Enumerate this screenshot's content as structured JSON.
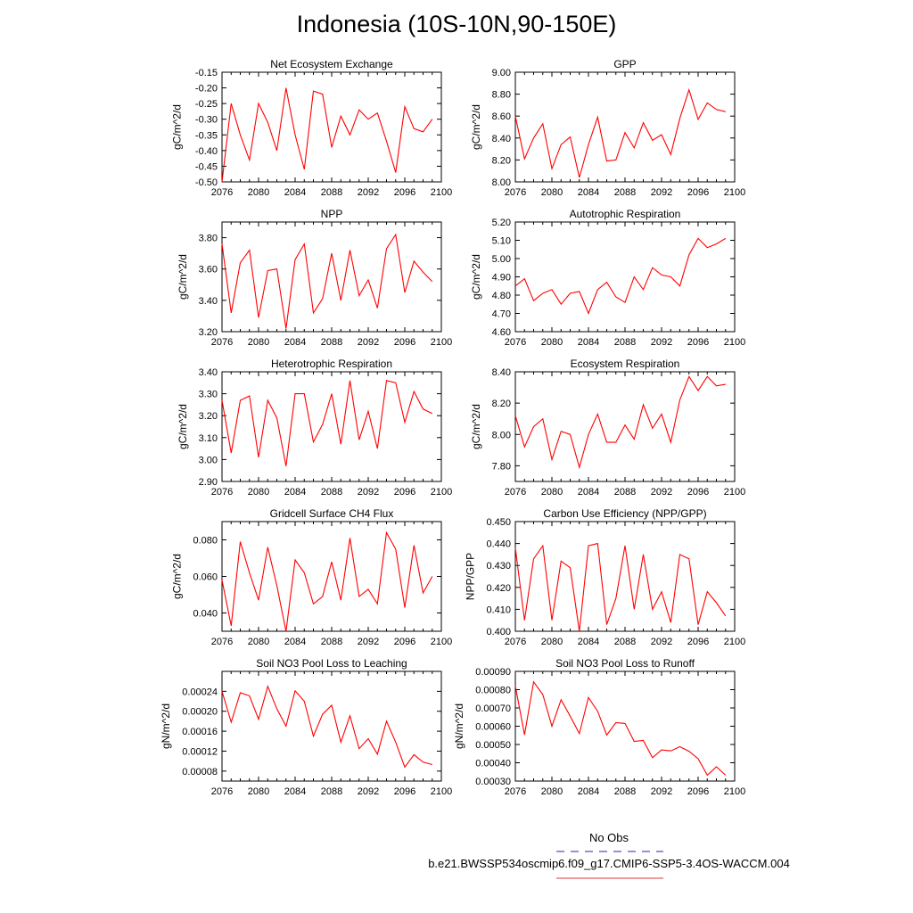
{
  "figure_title": "Indonesia (10S-10N,90-150E)",
  "legend": {
    "items": [
      {
        "label": "No Obs",
        "color": "#5050c8",
        "dash": "dashed"
      },
      {
        "label": "b.e21.BWSSP534oscmip6.f09_g17.CMIP6-SSP5-3.4OS-WACCM.004",
        "color": "#e06060",
        "dash": "solid"
      }
    ]
  },
  "series_color": "#ff0000",
  "chart_data": [
    {
      "type": "line",
      "title": "Net Ecosystem Exchange",
      "xlabel": "",
      "ylabel": "gC/m^2/d",
      "xlim": [
        2076,
        2100
      ],
      "ylim": [
        -0.5,
        -0.15
      ],
      "xticks": [
        "2076",
        "2080",
        "2084",
        "2088",
        "2092",
        "2096",
        "2100"
      ],
      "yticks": [
        "-0.15",
        "-0.20",
        "-0.25",
        "-0.30",
        "-0.35",
        "-0.40",
        "-0.45",
        "-0.50"
      ],
      "x": [
        2076,
        2077,
        2078,
        2079,
        2080,
        2081,
        2082,
        2083,
        2084,
        2085,
        2086,
        2087,
        2088,
        2089,
        2090,
        2091,
        2092,
        2093,
        2094,
        2095,
        2096,
        2097,
        2098,
        2099
      ],
      "values": [
        -0.5,
        -0.25,
        -0.35,
        -0.43,
        -0.25,
        -0.31,
        -0.4,
        -0.2,
        -0.35,
        -0.46,
        -0.21,
        -0.22,
        -0.39,
        -0.29,
        -0.35,
        -0.27,
        -0.3,
        -0.28,
        -0.37,
        -0.47,
        -0.26,
        -0.33,
        -0.34,
        -0.3
      ]
    },
    {
      "type": "line",
      "title": "GPP",
      "xlabel": "",
      "ylabel": "gC/m^2/d",
      "xlim": [
        2076,
        2100
      ],
      "ylim": [
        8.0,
        9.0
      ],
      "xticks": [
        "2076",
        "2080",
        "2084",
        "2088",
        "2092",
        "2096",
        "2100"
      ],
      "yticks": [
        "8.00",
        "8.20",
        "8.40",
        "8.60",
        "8.80",
        "9.00"
      ],
      "x": [
        2076,
        2077,
        2078,
        2079,
        2080,
        2081,
        2082,
        2083,
        2084,
        2085,
        2086,
        2087,
        2088,
        2089,
        2090,
        2091,
        2092,
        2093,
        2094,
        2095,
        2096,
        2097,
        2098,
        2099
      ],
      "values": [
        8.6,
        8.21,
        8.4,
        8.53,
        8.12,
        8.34,
        8.41,
        8.04,
        8.34,
        8.59,
        8.19,
        8.2,
        8.45,
        8.31,
        8.54,
        8.38,
        8.43,
        8.25,
        8.58,
        8.84,
        8.57,
        8.72,
        8.66,
        8.64
      ]
    },
    {
      "type": "line",
      "title": "NPP",
      "xlabel": "",
      "ylabel": "gC/m^2/d",
      "xlim": [
        2076,
        2100
      ],
      "ylim": [
        3.2,
        3.9
      ],
      "xticks": [
        "2076",
        "2080",
        "2084",
        "2088",
        "2092",
        "2096",
        "2100"
      ],
      "yticks": [
        "3.20",
        "3.40",
        "3.60",
        "3.80"
      ],
      "x": [
        2076,
        2077,
        2078,
        2079,
        2080,
        2081,
        2082,
        2083,
        2084,
        2085,
        2086,
        2087,
        2088,
        2089,
        2090,
        2091,
        2092,
        2093,
        2094,
        2095,
        2096,
        2097,
        2098,
        2099
      ],
      "values": [
        3.76,
        3.32,
        3.64,
        3.72,
        3.29,
        3.59,
        3.6,
        3.22,
        3.66,
        3.76,
        3.32,
        3.41,
        3.7,
        3.4,
        3.72,
        3.43,
        3.53,
        3.35,
        3.73,
        3.82,
        3.45,
        3.65,
        3.58,
        3.52
      ]
    },
    {
      "type": "line",
      "title": "Autotrophic Respiration",
      "xlabel": "",
      "ylabel": "gC/m^2/d",
      "xlim": [
        2076,
        2100
      ],
      "ylim": [
        4.6,
        5.2
      ],
      "xticks": [
        "2076",
        "2080",
        "2084",
        "2088",
        "2092",
        "2096",
        "2100"
      ],
      "yticks": [
        "4.60",
        "4.70",
        "4.80",
        "4.90",
        "5.00",
        "5.10",
        "5.20"
      ],
      "x": [
        2076,
        2077,
        2078,
        2079,
        2080,
        2081,
        2082,
        2083,
        2084,
        2085,
        2086,
        2087,
        2088,
        2089,
        2090,
        2091,
        2092,
        2093,
        2094,
        2095,
        2096,
        2097,
        2098,
        2099
      ],
      "values": [
        4.85,
        4.89,
        4.77,
        4.81,
        4.83,
        4.75,
        4.81,
        4.82,
        4.7,
        4.83,
        4.87,
        4.79,
        4.76,
        4.9,
        4.83,
        4.95,
        4.91,
        4.9,
        4.85,
        5.02,
        5.11,
        5.06,
        5.08,
        5.11
      ]
    },
    {
      "type": "line",
      "title": "Heterotrophic Respiration",
      "xlabel": "",
      "ylabel": "gC/m^2/d",
      "xlim": [
        2076,
        2100
      ],
      "ylim": [
        2.9,
        3.4
      ],
      "xticks": [
        "2076",
        "2080",
        "2084",
        "2088",
        "2092",
        "2096",
        "2100"
      ],
      "yticks": [
        "2.90",
        "3.00",
        "3.10",
        "3.20",
        "3.30",
        "3.40"
      ],
      "x": [
        2076,
        2077,
        2078,
        2079,
        2080,
        2081,
        2082,
        2083,
        2084,
        2085,
        2086,
        2087,
        2088,
        2089,
        2090,
        2091,
        2092,
        2093,
        2094,
        2095,
        2096,
        2097,
        2098,
        2099
      ],
      "values": [
        3.27,
        3.03,
        3.27,
        3.29,
        3.01,
        3.27,
        3.19,
        2.97,
        3.3,
        3.3,
        3.08,
        3.16,
        3.3,
        3.07,
        3.36,
        3.09,
        3.22,
        3.05,
        3.36,
        3.35,
        3.17,
        3.31,
        3.23,
        3.21
      ]
    },
    {
      "type": "line",
      "title": "Ecosystem Respiration",
      "xlabel": "",
      "ylabel": "gC/m^2/d",
      "xlim": [
        2076,
        2100
      ],
      "ylim": [
        7.7,
        8.4
      ],
      "xticks": [
        "2076",
        "2080",
        "2084",
        "2088",
        "2092",
        "2096",
        "2100"
      ],
      "yticks": [
        "7.80",
        "8.00",
        "8.20",
        "8.40"
      ],
      "x": [
        2076,
        2077,
        2078,
        2079,
        2080,
        2081,
        2082,
        2083,
        2084,
        2085,
        2086,
        2087,
        2088,
        2089,
        2090,
        2091,
        2092,
        2093,
        2094,
        2095,
        2096,
        2097,
        2098,
        2099
      ],
      "values": [
        8.12,
        7.92,
        8.05,
        8.1,
        7.84,
        8.02,
        8.0,
        7.79,
        8.0,
        8.13,
        7.95,
        7.95,
        8.06,
        7.97,
        8.19,
        8.04,
        8.13,
        7.95,
        8.22,
        8.37,
        8.28,
        8.37,
        8.31,
        8.32
      ]
    },
    {
      "type": "line",
      "title": "Gridcell Surface CH4 Flux",
      "xlabel": "",
      "ylabel": "gC/m^2/d",
      "xlim": [
        2076,
        2100
      ],
      "ylim": [
        0.03,
        0.09
      ],
      "xticks": [
        "2076",
        "2080",
        "2084",
        "2088",
        "2092",
        "2096",
        "2100"
      ],
      "yticks": [
        "0.040",
        "0.060",
        "0.080"
      ],
      "x": [
        2076,
        2077,
        2078,
        2079,
        2080,
        2081,
        2082,
        2083,
        2084,
        2085,
        2086,
        2087,
        2088,
        2089,
        2090,
        2091,
        2092,
        2093,
        2094,
        2095,
        2096,
        2097,
        2098,
        2099
      ],
      "values": [
        0.058,
        0.033,
        0.079,
        0.062,
        0.047,
        0.076,
        0.055,
        0.03,
        0.069,
        0.062,
        0.045,
        0.049,
        0.068,
        0.047,
        0.081,
        0.049,
        0.053,
        0.045,
        0.084,
        0.075,
        0.043,
        0.077,
        0.051,
        0.06
      ]
    },
    {
      "type": "line",
      "title": "Carbon Use Efficiency (NPP/GPP)",
      "xlabel": "",
      "ylabel": "NPP/GPP",
      "xlim": [
        2076,
        2100
      ],
      "ylim": [
        0.4,
        0.45
      ],
      "xticks": [
        "2076",
        "2080",
        "2084",
        "2088",
        "2092",
        "2096",
        "2100"
      ],
      "yticks": [
        "0.400",
        "0.410",
        "0.420",
        "0.430",
        "0.440",
        "0.450"
      ],
      "x": [
        2076,
        2077,
        2078,
        2079,
        2080,
        2081,
        2082,
        2083,
        2084,
        2085,
        2086,
        2087,
        2088,
        2089,
        2090,
        2091,
        2092,
        2093,
        2094,
        2095,
        2096,
        2097,
        2098,
        2099
      ],
      "values": [
        0.438,
        0.405,
        0.433,
        0.439,
        0.405,
        0.432,
        0.429,
        0.4,
        0.439,
        0.44,
        0.403,
        0.415,
        0.439,
        0.41,
        0.435,
        0.41,
        0.418,
        0.404,
        0.435,
        0.433,
        0.403,
        0.418,
        0.413,
        0.407
      ]
    },
    {
      "type": "line",
      "title": "Soil NO3 Pool Loss to Leaching",
      "xlabel": "",
      "ylabel": "gN/m^2/d",
      "xlim": [
        2076,
        2100
      ],
      "ylim": [
        6e-05,
        0.00028
      ],
      "xticks": [
        "2076",
        "2080",
        "2084",
        "2088",
        "2092",
        "2096",
        "2100"
      ],
      "yticks": [
        "0.00008",
        "0.00012",
        "0.00016",
        "0.00020",
        "0.00024"
      ],
      "x": [
        2076,
        2077,
        2078,
        2079,
        2080,
        2081,
        2082,
        2083,
        2084,
        2085,
        2086,
        2087,
        2088,
        2089,
        2090,
        2091,
        2092,
        2093,
        2094,
        2095,
        2096,
        2097,
        2098,
        2099
      ],
      "values": [
        0.00024,
        0.000178,
        0.000237,
        0.000231,
        0.000184,
        0.00025,
        0.000205,
        0.00017,
        0.000241,
        0.00022,
        0.00015,
        0.000194,
        0.000212,
        0.000138,
        0.000191,
        0.000125,
        0.000145,
        0.000114,
        0.00018,
        0.000138,
        8.8e-05,
        0.000113,
        9.8e-05,
        9.3e-05
      ]
    },
    {
      "type": "line",
      "title": "Soil NO3 Pool Loss to Runoff",
      "xlabel": "",
      "ylabel": "gN/m^2/d",
      "xlim": [
        2076,
        2100
      ],
      "ylim": [
        0.0003,
        0.0009
      ],
      "xticks": [
        "2076",
        "2080",
        "2084",
        "2088",
        "2092",
        "2096",
        "2100"
      ],
      "yticks": [
        "0.00030",
        "0.00040",
        "0.00050",
        "0.00060",
        "0.00070",
        "0.00080",
        "0.00090"
      ],
      "x": [
        2076,
        2077,
        2078,
        2079,
        2080,
        2081,
        2082,
        2083,
        2084,
        2085,
        2086,
        2087,
        2088,
        2089,
        2090,
        2091,
        2092,
        2093,
        2094,
        2095,
        2096,
        2097,
        2098,
        2099
      ],
      "values": [
        0.00082,
        0.000553,
        0.000843,
        0.000773,
        0.0006,
        0.000745,
        0.000655,
        0.00056,
        0.000757,
        0.000682,
        0.000551,
        0.00062,
        0.000615,
        0.000517,
        0.000522,
        0.000428,
        0.00047,
        0.000465,
        0.000488,
        0.000463,
        0.000422,
        0.000332,
        0.000378,
        0.000332
      ]
    }
  ]
}
